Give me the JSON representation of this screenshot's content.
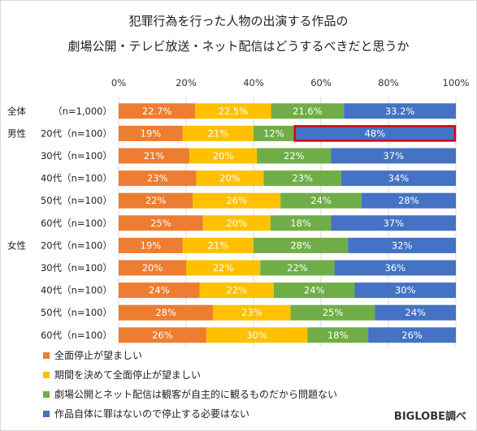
{
  "chart_data": {
    "type": "bar",
    "stacked": true,
    "orientation": "horizontal",
    "percent": true,
    "title_lines": [
      "犯罪行為を行った人物の出演する作品の",
      "劇場公開・テレビ放送・ネット配信はどうするべきだと思うか"
    ],
    "x_ticks": [
      "0%",
      "20%",
      "40%",
      "60%",
      "80%",
      "100%"
    ],
    "xlim": [
      0,
      100
    ],
    "grid": true,
    "legend_position": "bottom-left",
    "credit": "BIGLOBE調べ",
    "rows": [
      {
        "group": "全体",
        "label": "（n=1,000）"
      },
      {
        "group": "男性",
        "label": "20代（n=100）"
      },
      {
        "group": "",
        "label": "30代（n=100）"
      },
      {
        "group": "",
        "label": "40代（n=100）"
      },
      {
        "group": "",
        "label": "50代（n=100）"
      },
      {
        "group": "",
        "label": "60代（n=100）"
      },
      {
        "group": "女性",
        "label": "20代（n=100）"
      },
      {
        "group": "",
        "label": "30代（n=100）"
      },
      {
        "group": "",
        "label": "40代（n=100）"
      },
      {
        "group": "",
        "label": "50代（n=100）"
      },
      {
        "group": "",
        "label": "60代（n=100）"
      }
    ],
    "series": [
      {
        "name": "全面停止が望ましい",
        "color": "#ed7d31",
        "values": [
          22.7,
          19,
          21,
          23,
          22,
          25,
          19,
          20,
          24,
          28,
          26
        ],
        "labels": [
          "22.7%",
          "19%",
          "21%",
          "23%",
          "22%",
          "25%",
          "19%",
          "20%",
          "24%",
          "28%",
          "26%"
        ]
      },
      {
        "name": "期間を決めて全面停止が望ましい",
        "color": "#ffc000",
        "values": [
          22.5,
          21,
          20,
          20,
          26,
          20,
          21,
          22,
          22,
          23,
          30
        ],
        "labels": [
          "22.5%",
          "21%",
          "20%",
          "20%",
          "26%",
          "20%",
          "21%",
          "22%",
          "22%",
          "23%",
          "30%"
        ]
      },
      {
        "name": "劇場公開とネット配信は観客が自主的に観るものだから問題ない",
        "color": "#70ad47",
        "values": [
          21.6,
          12,
          22,
          23,
          24,
          18,
          28,
          22,
          24,
          25,
          18
        ],
        "labels": [
          "21.6%",
          "12%",
          "22%",
          "23%",
          "24%",
          "18%",
          "28%",
          "22%",
          "24%",
          "25%",
          "18%"
        ]
      },
      {
        "name": "作品自体に罪はないので停止する必要はない",
        "color": "#4472c4",
        "values": [
          33.2,
          48,
          37,
          34,
          28,
          37,
          32,
          36,
          30,
          24,
          26
        ],
        "labels": [
          "33.2%",
          "48%",
          "37%",
          "34%",
          "28%",
          "37%",
          "32%",
          "36%",
          "30%",
          "24%",
          "26%"
        ]
      }
    ],
    "highlight": {
      "row": 1,
      "series": 3,
      "color": "#e00000"
    }
  }
}
